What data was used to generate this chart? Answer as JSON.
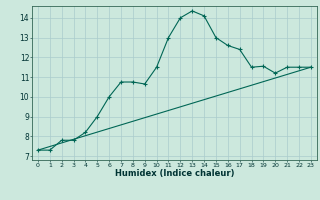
{
  "xlabel": "Humidex (Indice chaleur)",
  "background_color": "#cce8dd",
  "grid_color": "#aacccc",
  "line_color": "#006655",
  "xlim": [
    -0.5,
    23.5
  ],
  "ylim": [
    6.8,
    14.6
  ],
  "yticks": [
    7,
    8,
    9,
    10,
    11,
    12,
    13,
    14
  ],
  "xticks": [
    0,
    1,
    2,
    3,
    4,
    5,
    6,
    7,
    8,
    9,
    10,
    11,
    12,
    13,
    14,
    15,
    16,
    17,
    18,
    19,
    20,
    21,
    22,
    23
  ],
  "curve_x": [
    0,
    1,
    2,
    3,
    4,
    5,
    6,
    7,
    8,
    9,
    10,
    11,
    12,
    13,
    14,
    15,
    16,
    17,
    18,
    19,
    20,
    21,
    22,
    23
  ],
  "curve_y": [
    7.3,
    7.3,
    7.8,
    7.8,
    8.2,
    9.0,
    10.0,
    10.75,
    10.75,
    10.65,
    11.5,
    13.0,
    14.0,
    14.35,
    14.1,
    13.0,
    12.6,
    12.4,
    11.5,
    11.55,
    11.2,
    11.5,
    11.5,
    11.5
  ],
  "line_x": [
    0,
    23
  ],
  "line_y": [
    7.3,
    11.5
  ]
}
